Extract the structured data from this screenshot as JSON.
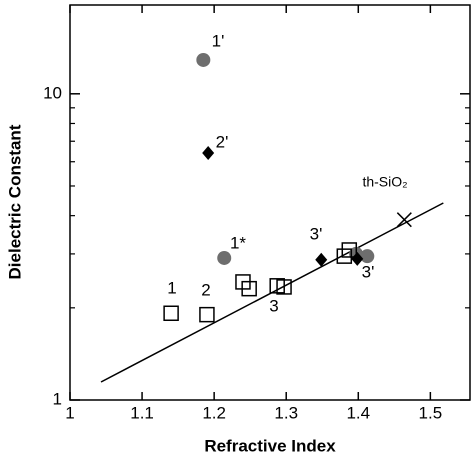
{
  "chart_data": {
    "type": "scatter",
    "x_label": "Refractive Index",
    "y_label": "Dielectric Constant",
    "xlim": [
      1.0,
      1.555
    ],
    "ylim": [
      1,
      19.5
    ],
    "log_y": true,
    "xticks": [
      1,
      1.1,
      1.2,
      1.3,
      1.4,
      1.5
    ],
    "yticks": [
      1,
      10
    ],
    "yticks_minor": [
      2,
      3,
      4,
      5,
      6,
      7,
      8,
      9
    ],
    "series": [
      {
        "marker": "circle",
        "color": "#6e6e6e",
        "x": [
          1.185,
          1.214,
          1.397,
          1.4125
        ],
        "values": [
          12.9,
          2.91,
          3.0,
          2.95
        ]
      },
      {
        "marker": "diamond",
        "color": "#000000",
        "x": [
          1.1917,
          1.3486,
          1.3986
        ],
        "values": [
          6.41,
          2.87,
          2.89
        ]
      },
      {
        "marker": "square",
        "color": "#000000",
        "x": [
          1.1403,
          1.19,
          1.24,
          1.2486,
          1.2875,
          1.297,
          1.3806,
          1.3875
        ],
        "values": [
          1.92,
          1.9,
          2.43,
          2.31,
          2.36,
          2.34,
          2.95,
          3.09
        ]
      },
      {
        "marker": "cross",
        "color": "#000000",
        "x": [
          1.4639
        ],
        "values": [
          3.88
        ]
      }
    ],
    "fit_line": {
      "x": [
        1.043,
        1.518
      ],
      "values": [
        1.145,
        4.4
      ]
    },
    "annotations": [
      "1'",
      "2'",
      "1*",
      "3'",
      "3'",
      "1",
      "2",
      "3",
      "th-SiO₂"
    ]
  }
}
